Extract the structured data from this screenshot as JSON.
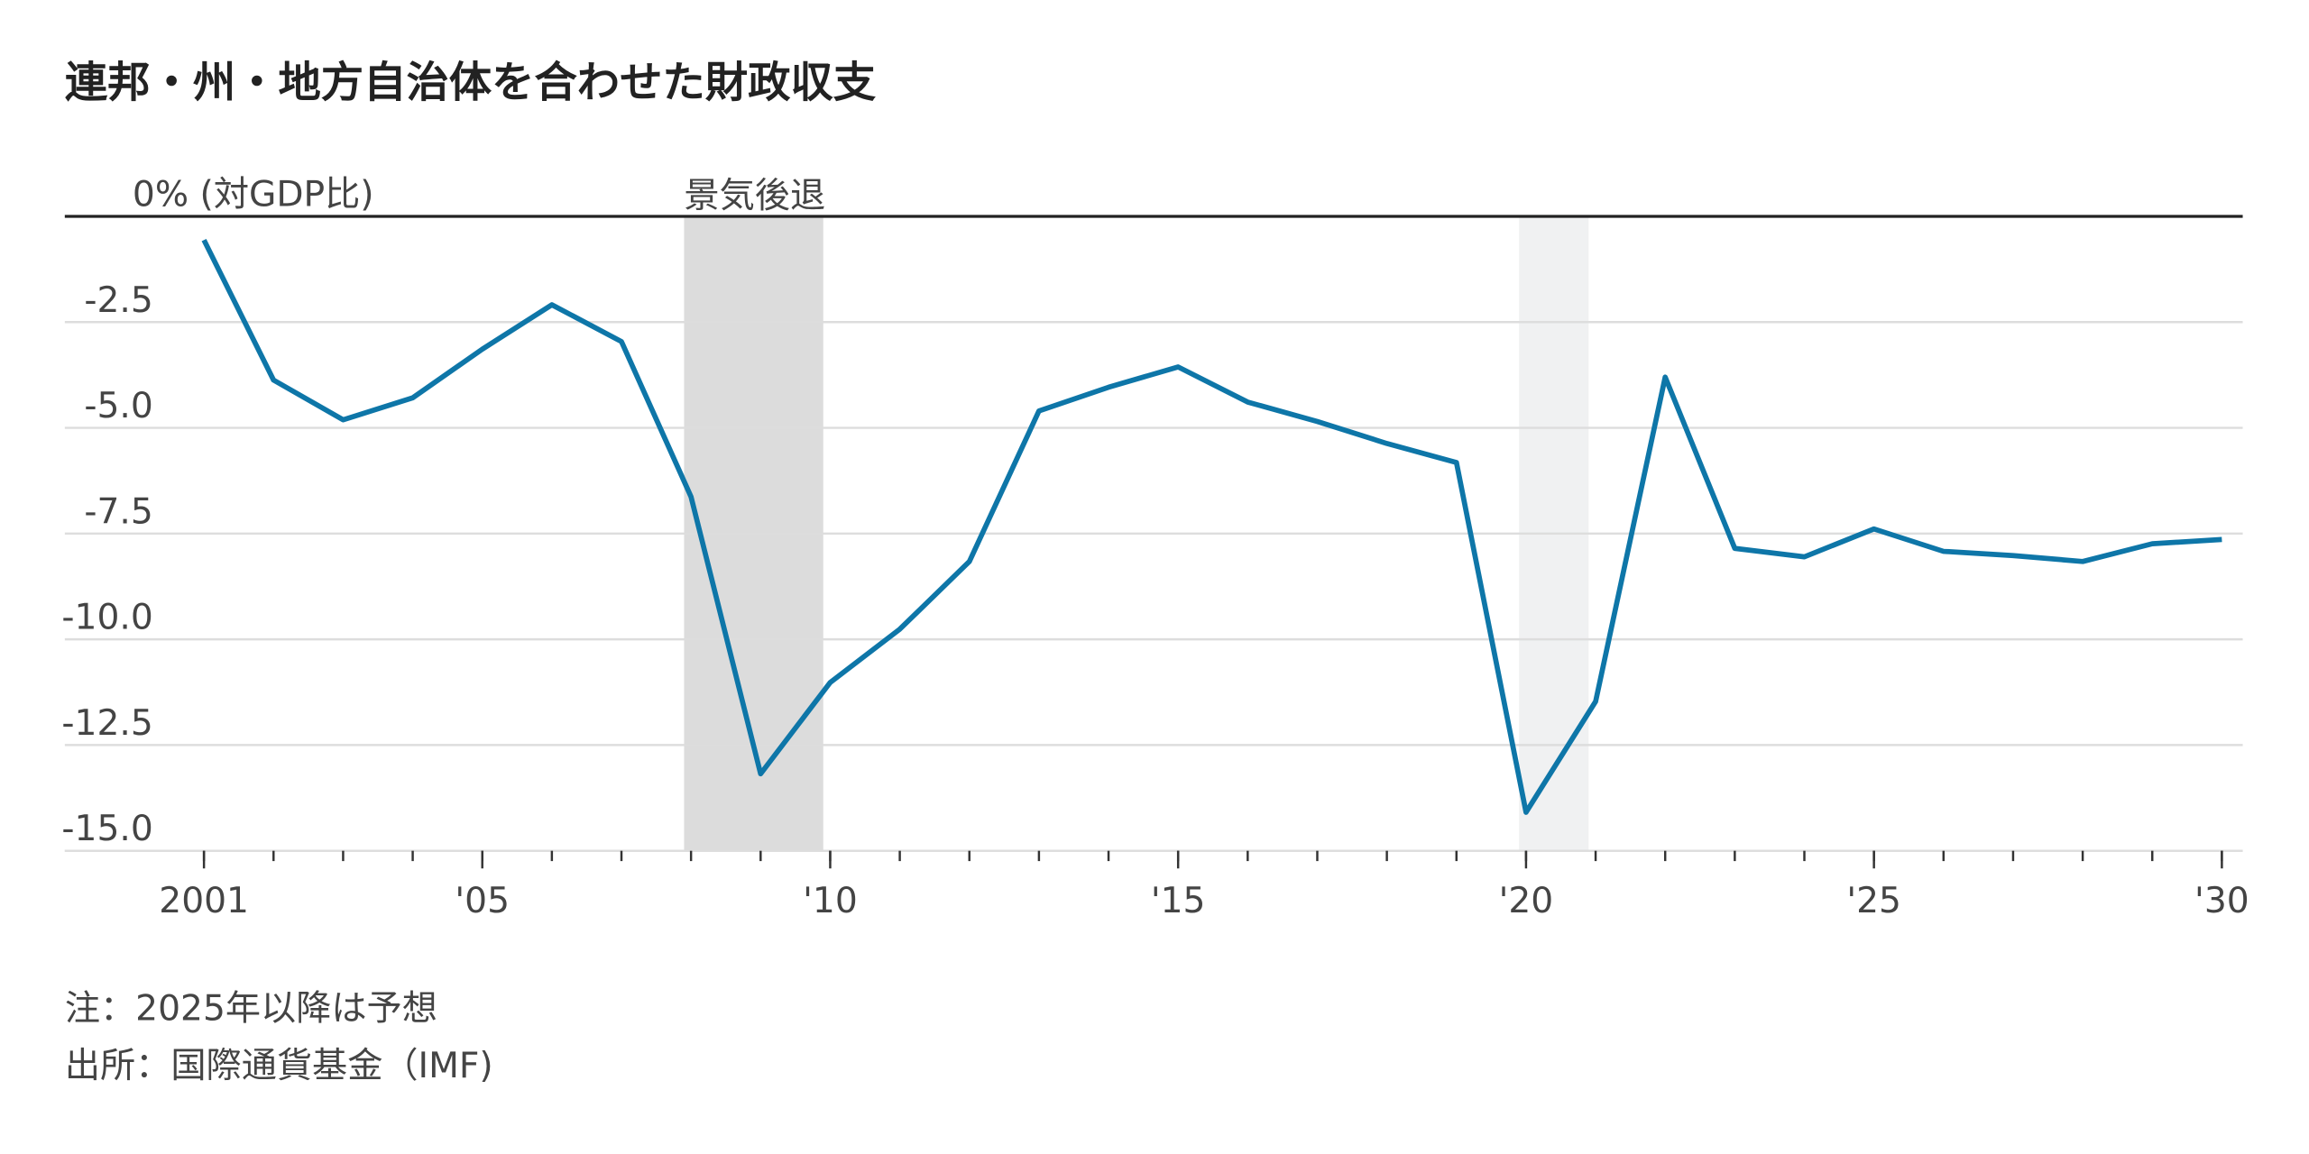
{
  "chart_data": {
    "type": "line",
    "title": "連邦・州・地方自治体を合わせた財政収支",
    "x": [
      2001,
      2002,
      2003,
      2004,
      2005,
      2006,
      2007,
      2008,
      2009,
      2010,
      2011,
      2012,
      2013,
      2014,
      2015,
      2016,
      2017,
      2018,
      2019,
      2020,
      2021,
      2022,
      2023,
      2024,
      2025,
      2026,
      2027,
      2028,
      2029,
      2030
    ],
    "series": [
      {
        "name": "財政収支",
        "color": "#0e76a8",
        "values": [
          -0.56,
          -3.87,
          -4.81,
          -4.29,
          -3.14,
          -2.09,
          -2.96,
          -6.63,
          -13.18,
          -11.02,
          -9.76,
          -8.16,
          -4.6,
          -4.04,
          -3.56,
          -4.39,
          -4.85,
          -5.37,
          -5.82,
          -14.09,
          -11.47,
          -3.8,
          -7.85,
          -8.05,
          -7.39,
          -7.92,
          -8.02,
          -8.16,
          -7.74,
          -7.64
        ]
      }
    ],
    "xlim": [
      1999,
      2030.3
    ],
    "ylim": [
      -15,
      0
    ],
    "xticks": [
      {
        "value": 2001,
        "label": "2001"
      },
      {
        "value": 2005,
        "label": "'05"
      },
      {
        "value": 2010,
        "label": "'10"
      },
      {
        "value": 2015,
        "label": "'15"
      },
      {
        "value": 2020,
        "label": "'20"
      },
      {
        "value": 2025,
        "label": "'25"
      },
      {
        "value": 2030,
        "label": "'30"
      }
    ],
    "yticks": [
      {
        "value": 0,
        "label": "0% (対GDP比)"
      },
      -2.5,
      {
        "value": -5,
        "label": "-5.0"
      },
      -7.5,
      {
        "value": -10,
        "label": "-10.0"
      },
      -12.5,
      {
        "value": -15,
        "label": "-15.0"
      }
    ],
    "grid": true,
    "recessions": [
      {
        "start": 2007.9,
        "end": 2009.9,
        "color": "#dcdcdc"
      },
      {
        "start": 2019.9,
        "end": 2020.9,
        "color": "#f0f1f2"
      }
    ],
    "recession_label": "景気後退",
    "notes": [
      "注：2025年以降は予想",
      "出所：国際通貨基金（IMF)"
    ]
  }
}
